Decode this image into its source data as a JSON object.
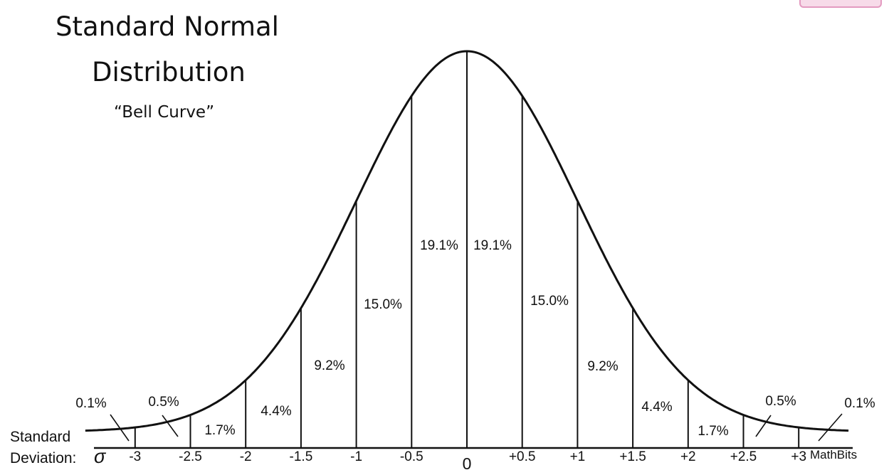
{
  "title_lines": [
    "Standard Normal",
    "Distribution"
  ],
  "subtitle": "“Bell Curve”",
  "axis_label_lines": [
    "Standard",
    "Deviation:"
  ],
  "sigma_symbol": "σ",
  "credit": "MathBits",
  "chart_data": {
    "type": "area",
    "title": "Standard Normal Distribution",
    "subtitle": "“Bell Curve”",
    "xlabel": "Standard Deviation: σ",
    "xlim": [
      -3.45,
      3.45
    ],
    "ylim": [
      0,
      0.399
    ],
    "boundaries": [
      -3,
      -2.5,
      -2,
      -1.5,
      -1,
      -0.5,
      0,
      0.5,
      1,
      1.5,
      2,
      2.5,
      3
    ],
    "tick_labels": [
      "-3",
      "-2.5",
      "-2",
      "-1.5",
      "-1",
      "-0.5",
      "0",
      "+0.5",
      "+1",
      "+1.5",
      "+2",
      "+2.5",
      "+3"
    ],
    "regions": [
      {
        "from": -3.45,
        "to": -3,
        "label": "0.1%",
        "pointer": true
      },
      {
        "from": -3,
        "to": -2.5,
        "label": "0.5%",
        "pointer": true
      },
      {
        "from": -2.5,
        "to": -2,
        "label": "1.7%"
      },
      {
        "from": -2,
        "to": -1.5,
        "label": "4.4%"
      },
      {
        "from": -1.5,
        "to": -1,
        "label": "9.2%"
      },
      {
        "from": -1,
        "to": -0.5,
        "label": "15.0%"
      },
      {
        "from": -0.5,
        "to": 0,
        "label": "19.1%"
      },
      {
        "from": 0,
        "to": 0.5,
        "label": "19.1%"
      },
      {
        "from": 0.5,
        "to": 1,
        "label": "15.0%"
      },
      {
        "from": 1,
        "to": 1.5,
        "label": "9.2%"
      },
      {
        "from": 1.5,
        "to": 2,
        "label": "4.4%"
      },
      {
        "from": 2,
        "to": 2.5,
        "label": "1.7%"
      },
      {
        "from": 2.5,
        "to": 3,
        "label": "0.5%",
        "pointer": true
      },
      {
        "from": 3,
        "to": 3.45,
        "label": "0.1%",
        "pointer": true
      }
    ],
    "grid": false
  }
}
